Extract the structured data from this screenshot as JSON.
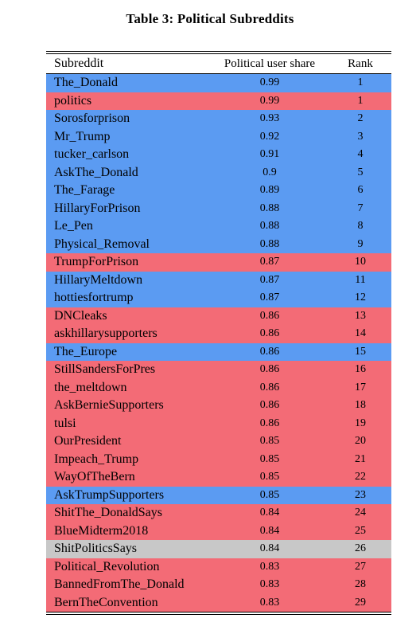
{
  "caption": "Table 3: Political Subreddits",
  "columns": {
    "subreddit": "Subreddit",
    "share": "Political user share",
    "rank": "Rank"
  },
  "colors": {
    "blue": "#5b9bf2",
    "red": "#f36b76",
    "gray": "#c8c8c8"
  },
  "rows": [
    {
      "name": "The_Donald",
      "share": "0.99",
      "rank": "1",
      "color": "blue"
    },
    {
      "name": "politics",
      "share": "0.99",
      "rank": "1",
      "color": "red"
    },
    {
      "name": "Sorosforprison",
      "share": "0.93",
      "rank": "2",
      "color": "blue"
    },
    {
      "name": "Mr_Trump",
      "share": "0.92",
      "rank": "3",
      "color": "blue"
    },
    {
      "name": "tucker_carlson",
      "share": "0.91",
      "rank": "4",
      "color": "blue"
    },
    {
      "name": "AskThe_Donald",
      "share": "0.9",
      "rank": "5",
      "color": "blue"
    },
    {
      "name": "The_Farage",
      "share": "0.89",
      "rank": "6",
      "color": "blue"
    },
    {
      "name": "HillaryForPrison",
      "share": "0.88",
      "rank": "7",
      "color": "blue"
    },
    {
      "name": "Le_Pen",
      "share": "0.88",
      "rank": "8",
      "color": "blue"
    },
    {
      "name": "Physical_Removal",
      "share": "0.88",
      "rank": "9",
      "color": "blue"
    },
    {
      "name": "TrumpForPrison",
      "share": "0.87",
      "rank": "10",
      "color": "red"
    },
    {
      "name": "HillaryMeltdown",
      "share": "0.87",
      "rank": "11",
      "color": "blue"
    },
    {
      "name": "hottiesfortrump",
      "share": "0.87",
      "rank": "12",
      "color": "blue"
    },
    {
      "name": "DNCleaks",
      "share": "0.86",
      "rank": "13",
      "color": "red"
    },
    {
      "name": "askhillarysupporters",
      "share": "0.86",
      "rank": "14",
      "color": "red"
    },
    {
      "name": "The_Europe",
      "share": "0.86",
      "rank": "15",
      "color": "blue"
    },
    {
      "name": "StillSandersForPres",
      "share": "0.86",
      "rank": "16",
      "color": "red"
    },
    {
      "name": "the_meltdown",
      "share": "0.86",
      "rank": "17",
      "color": "red"
    },
    {
      "name": "AskBernieSupporters",
      "share": "0.86",
      "rank": "18",
      "color": "red"
    },
    {
      "name": "tulsi",
      "share": "0.86",
      "rank": "19",
      "color": "red"
    },
    {
      "name": "OurPresident",
      "share": "0.85",
      "rank": "20",
      "color": "red"
    },
    {
      "name": "Impeach_Trump",
      "share": "0.85",
      "rank": "21",
      "color": "red"
    },
    {
      "name": "WayOfTheBern",
      "share": "0.85",
      "rank": "22",
      "color": "red"
    },
    {
      "name": "AskTrumpSupporters",
      "share": "0.85",
      "rank": "23",
      "color": "blue"
    },
    {
      "name": "ShitThe_DonaldSays",
      "share": "0.84",
      "rank": "24",
      "color": "red"
    },
    {
      "name": "BlueMidterm2018",
      "share": "0.84",
      "rank": "25",
      "color": "red"
    },
    {
      "name": "ShitPoliticsSays",
      "share": "0.84",
      "rank": "26",
      "color": "gray"
    },
    {
      "name": "Political_Revolution",
      "share": "0.83",
      "rank": "27",
      "color": "red"
    },
    {
      "name": "BannedFromThe_Donald",
      "share": "0.83",
      "rank": "28",
      "color": "red"
    },
    {
      "name": "BernTheConvention",
      "share": "0.83",
      "rank": "29",
      "color": "red"
    }
  ]
}
